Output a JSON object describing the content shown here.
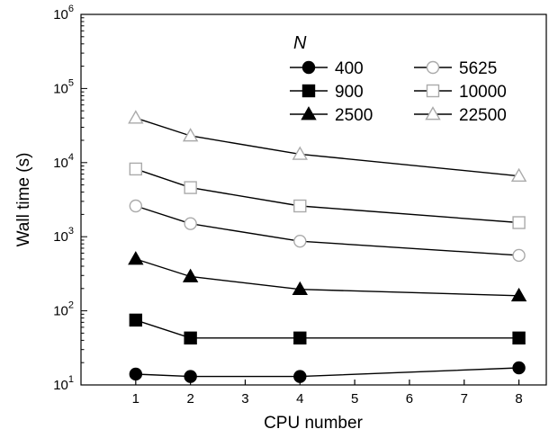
{
  "chart_data": {
    "type": "line",
    "xlabel": "CPU number",
    "ylabel": "Wall time (s)",
    "x_scale": "linear",
    "y_scale": "log",
    "xlim": [
      0,
      8.5
    ],
    "ylim": [
      10,
      1000000
    ],
    "x_ticks": [
      "1",
      "2",
      "3",
      "4",
      "5",
      "6",
      "7",
      "8"
    ],
    "y_tick_labels": [
      {
        "base": "10",
        "exp": "1"
      },
      {
        "base": "10",
        "exp": "2"
      },
      {
        "base": "10",
        "exp": "3"
      },
      {
        "base": "10",
        "exp": "4"
      },
      {
        "base": "10",
        "exp": "5"
      },
      {
        "base": "10",
        "exp": "6"
      }
    ],
    "grid": false,
    "legend": {
      "title": "N",
      "placement": "top-right",
      "columns": 2
    },
    "x": [
      1,
      2,
      4,
      8
    ],
    "series": [
      {
        "name": "400",
        "marker": "circle",
        "filled": true,
        "values": [
          14,
          13,
          13,
          17
        ]
      },
      {
        "name": "900",
        "marker": "square",
        "filled": true,
        "values": [
          75,
          43,
          43,
          43
        ]
      },
      {
        "name": "2500",
        "marker": "triangle",
        "filled": true,
        "values": [
          500,
          290,
          195,
          160
        ]
      },
      {
        "name": "5625",
        "marker": "circle",
        "filled": false,
        "values": [
          2600,
          1500,
          870,
          560
        ]
      },
      {
        "name": "10000",
        "marker": "square",
        "filled": false,
        "values": [
          8200,
          4600,
          2600,
          1550
        ]
      },
      {
        "name": "22500",
        "marker": "triangle",
        "filled": false,
        "values": [
          40000,
          23000,
          13000,
          6600
        ]
      }
    ],
    "colors": {
      "line": "#000000",
      "open_fill": "#ffffff",
      "open_stroke": "#aaaaaa"
    }
  }
}
